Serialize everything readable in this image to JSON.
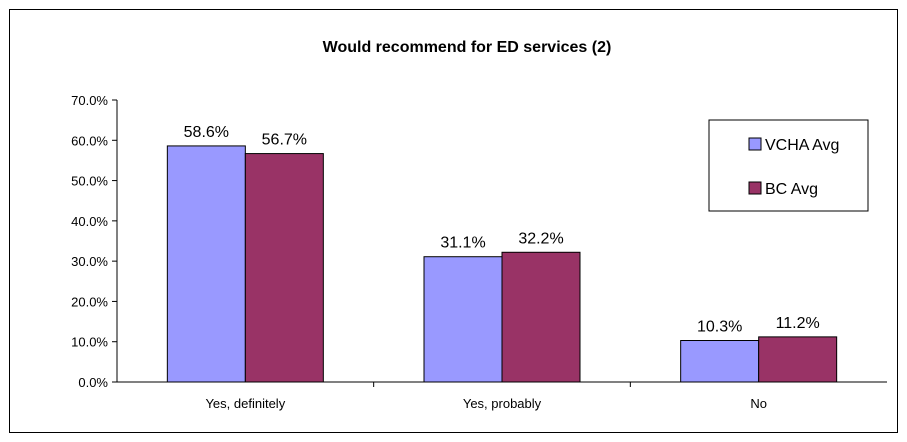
{
  "chart_data": {
    "type": "bar",
    "title": "Would recommend for ED services (2)",
    "categories": [
      "Yes, definitely",
      "Yes, probably",
      "No"
    ],
    "series": [
      {
        "name": "VCHA Avg",
        "values": [
          58.6,
          31.1,
          10.3
        ],
        "labels": [
          "58.6%",
          "31.1%",
          "10.3%"
        ],
        "color": "#9999FF"
      },
      {
        "name": "BC Avg",
        "values": [
          56.7,
          32.2,
          11.2
        ],
        "labels": [
          "56.7%",
          "32.2%",
          "11.2%"
        ],
        "color": "#993366"
      }
    ],
    "y_ticks": [
      "0.0%",
      "10.0%",
      "20.0%",
      "30.0%",
      "40.0%",
      "50.0%",
      "60.0%",
      "70.0%"
    ],
    "ylim": [
      0,
      70
    ],
    "grid": false,
    "legend_position": "top-right"
  }
}
